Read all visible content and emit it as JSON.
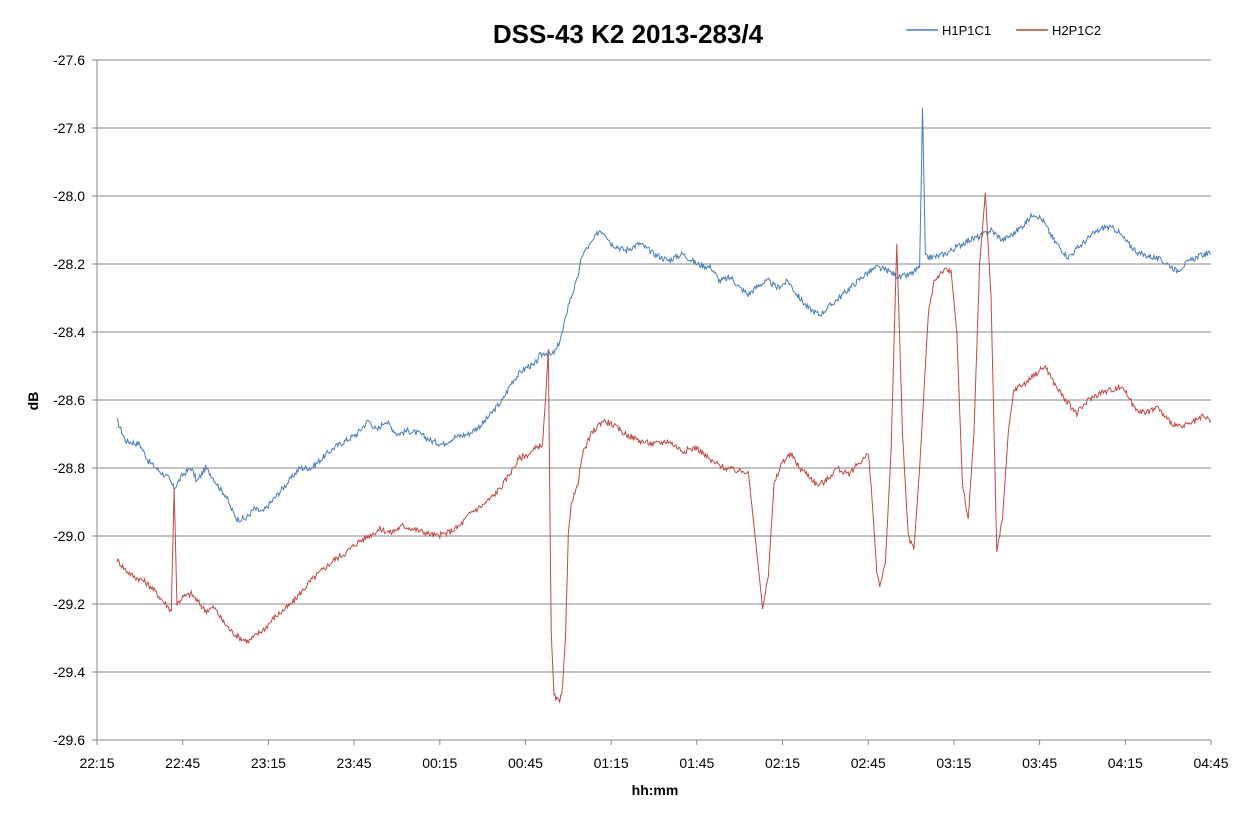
{
  "chart_data": {
    "type": "line",
    "title": "DSS-43 K2 2013-283/4",
    "xlabel": "hh:mm",
    "ylabel": "dB",
    "ylim": [
      -29.6,
      -27.6
    ],
    "y_ticks": [
      "-27.6",
      "-27.8",
      "-28.0",
      "-28.2",
      "-28.4",
      "-28.6",
      "-28.8",
      "-29.0",
      "-29.2",
      "-29.4",
      "-29.6"
    ],
    "x_ticks": [
      "22:15",
      "22:45",
      "23:15",
      "23:45",
      "00:15",
      "00:45",
      "01:15",
      "01:45",
      "02:15",
      "02:45",
      "03:15",
      "03:45",
      "04:15",
      "04:45"
    ],
    "grid": "horizontal",
    "legend_position": "top-right",
    "series": [
      {
        "name": "H1P1C1",
        "color": "#4a7ebb",
        "points": [
          [
            "22:22",
            -28.66
          ],
          [
            "22:25",
            -28.72
          ],
          [
            "22:30",
            -28.73
          ],
          [
            "22:33",
            -28.78
          ],
          [
            "22:37",
            -28.81
          ],
          [
            "22:40",
            -28.83
          ],
          [
            "22:42",
            -28.86
          ],
          [
            "22:45",
            -28.82
          ],
          [
            "22:48",
            -28.8
          ],
          [
            "22:50",
            -28.84
          ],
          [
            "22:53",
            -28.8
          ],
          [
            "22:55",
            -28.82
          ],
          [
            "22:58",
            -28.86
          ],
          [
            "23:00",
            -28.88
          ],
          [
            "23:02",
            -28.92
          ],
          [
            "23:04",
            -28.95
          ],
          [
            "23:07",
            -28.95
          ],
          [
            "23:10",
            -28.92
          ],
          [
            "23:13",
            -28.93
          ],
          [
            "23:16",
            -28.9
          ],
          [
            "23:19",
            -28.87
          ],
          [
            "23:22",
            -28.84
          ],
          [
            "23:26",
            -28.8
          ],
          [
            "23:30",
            -28.8
          ],
          [
            "23:34",
            -28.77
          ],
          [
            "23:38",
            -28.74
          ],
          [
            "23:42",
            -28.72
          ],
          [
            "23:46",
            -28.7
          ],
          [
            "23:50",
            -28.66
          ],
          [
            "23:53",
            -28.69
          ],
          [
            "23:56",
            -28.66
          ],
          [
            "00:00",
            -28.7
          ],
          [
            "00:04",
            -28.69
          ],
          [
            "00:08",
            -28.7
          ],
          [
            "00:12",
            -28.72
          ],
          [
            "00:16",
            -28.73
          ],
          [
            "00:20",
            -28.71
          ],
          [
            "00:25",
            -28.7
          ],
          [
            "00:30",
            -28.67
          ],
          [
            "00:34",
            -28.63
          ],
          [
            "00:37",
            -28.6
          ],
          [
            "00:40",
            -28.55
          ],
          [
            "00:43",
            -28.52
          ],
          [
            "00:46",
            -28.5
          ],
          [
            "00:48",
            -28.5
          ],
          [
            "00:50",
            -28.47
          ],
          [
            "00:52",
            -28.46
          ],
          [
            "00:54",
            -28.47
          ],
          [
            "00:56",
            -28.45
          ],
          [
            "00:58",
            -28.4
          ],
          [
            "01:00",
            -28.32
          ],
          [
            "01:03",
            -28.25
          ],
          [
            "01:05",
            -28.17
          ],
          [
            "01:08",
            -28.14
          ],
          [
            "01:11",
            -28.1
          ],
          [
            "01:13",
            -28.11
          ],
          [
            "01:15",
            -28.14
          ],
          [
            "01:20",
            -28.16
          ],
          [
            "01:25",
            -28.14
          ],
          [
            "01:30",
            -28.17
          ],
          [
            "01:35",
            -28.19
          ],
          [
            "01:40",
            -28.17
          ],
          [
            "01:45",
            -28.2
          ],
          [
            "01:50",
            -28.21
          ],
          [
            "01:53",
            -28.25
          ],
          [
            "01:57",
            -28.24
          ],
          [
            "02:00",
            -28.27
          ],
          [
            "02:03",
            -28.29
          ],
          [
            "02:07",
            -28.26
          ],
          [
            "02:10",
            -28.25
          ],
          [
            "02:13",
            -28.27
          ],
          [
            "02:17",
            -28.25
          ],
          [
            "02:20",
            -28.29
          ],
          [
            "02:24",
            -28.33
          ],
          [
            "02:28",
            -28.35
          ],
          [
            "02:32",
            -28.32
          ],
          [
            "02:36",
            -28.29
          ],
          [
            "02:40",
            -28.26
          ],
          [
            "02:44",
            -28.23
          ],
          [
            "02:48",
            -28.21
          ],
          [
            "02:52",
            -28.22
          ],
          [
            "02:56",
            -28.24
          ],
          [
            "03:00",
            -28.23
          ],
          [
            "03:03",
            -28.21
          ],
          [
            "03:04",
            -27.74
          ],
          [
            "03:05",
            -28.18
          ],
          [
            "03:08",
            -28.18
          ],
          [
            "03:12",
            -28.17
          ],
          [
            "03:16",
            -28.15
          ],
          [
            "03:20",
            -28.13
          ],
          [
            "03:24",
            -28.12
          ],
          [
            "03:28",
            -28.1
          ],
          [
            "03:32",
            -28.13
          ],
          [
            "03:36",
            -28.11
          ],
          [
            "03:40",
            -28.08
          ],
          [
            "03:43",
            -28.05
          ],
          [
            "03:46",
            -28.07
          ],
          [
            "03:50",
            -28.13
          ],
          [
            "03:55",
            -28.18
          ],
          [
            "04:00",
            -28.14
          ],
          [
            "04:04",
            -28.11
          ],
          [
            "04:08",
            -28.09
          ],
          [
            "04:12",
            -28.1
          ],
          [
            "04:16",
            -28.14
          ],
          [
            "04:20",
            -28.17
          ],
          [
            "04:25",
            -28.18
          ],
          [
            "04:30",
            -28.2
          ],
          [
            "04:33",
            -28.22
          ],
          [
            "04:36",
            -28.2
          ],
          [
            "04:40",
            -28.18
          ],
          [
            "04:43",
            -28.17
          ],
          [
            "04:45",
            -28.17
          ]
        ]
      },
      {
        "name": "H2P1C2",
        "color": "#be4b48",
        "points": [
          [
            "22:22",
            -29.07
          ],
          [
            "22:25",
            -29.1
          ],
          [
            "22:28",
            -29.12
          ],
          [
            "22:31",
            -29.13
          ],
          [
            "22:34",
            -29.15
          ],
          [
            "22:37",
            -29.18
          ],
          [
            "22:40",
            -29.21
          ],
          [
            "22:41",
            -29.22
          ],
          [
            "22:42",
            -28.86
          ],
          [
            "22:43",
            -29.2
          ],
          [
            "22:45",
            -29.18
          ],
          [
            "22:48",
            -29.17
          ],
          [
            "22:50",
            -29.19
          ],
          [
            "22:53",
            -29.22
          ],
          [
            "22:56",
            -29.21
          ],
          [
            "22:59",
            -29.25
          ],
          [
            "23:02",
            -29.28
          ],
          [
            "23:05",
            -29.3
          ],
          [
            "23:08",
            -29.31
          ],
          [
            "23:11",
            -29.29
          ],
          [
            "23:14",
            -29.27
          ],
          [
            "23:17",
            -29.24
          ],
          [
            "23:20",
            -29.22
          ],
          [
            "23:23",
            -29.2
          ],
          [
            "23:26",
            -29.17
          ],
          [
            "23:30",
            -29.13
          ],
          [
            "23:34",
            -29.1
          ],
          [
            "23:38",
            -29.07
          ],
          [
            "23:42",
            -29.05
          ],
          [
            "23:46",
            -29.02
          ],
          [
            "23:50",
            -29.0
          ],
          [
            "23:54",
            -28.98
          ],
          [
            "23:58",
            -28.99
          ],
          [
            "00:02",
            -28.97
          ],
          [
            "00:06",
            -28.98
          ],
          [
            "00:10",
            -28.99
          ],
          [
            "00:14",
            -29.0
          ],
          [
            "00:18",
            -28.99
          ],
          [
            "00:22",
            -28.97
          ],
          [
            "00:26",
            -28.93
          ],
          [
            "00:30",
            -28.91
          ],
          [
            "00:34",
            -28.88
          ],
          [
            "00:37",
            -28.85
          ],
          [
            "00:40",
            -28.81
          ],
          [
            "00:43",
            -28.77
          ],
          [
            "00:46",
            -28.76
          ],
          [
            "00:49",
            -28.74
          ],
          [
            "00:51",
            -28.73
          ],
          [
            "00:52",
            -28.6
          ],
          [
            "00:53",
            -28.45
          ],
          [
            "00:54",
            -29.28
          ],
          [
            "00:55",
            -29.47
          ],
          [
            "00:57",
            -29.49
          ],
          [
            "00:58",
            -29.45
          ],
          [
            "00:59",
            -29.3
          ],
          [
            "01:00",
            -29.0
          ],
          [
            "01:01",
            -28.9
          ],
          [
            "01:03",
            -28.86
          ],
          [
            "01:05",
            -28.76
          ],
          [
            "01:08",
            -28.7
          ],
          [
            "01:12",
            -28.66
          ],
          [
            "01:15",
            -28.67
          ],
          [
            "01:20",
            -28.7
          ],
          [
            "01:25",
            -28.72
          ],
          [
            "01:30",
            -28.73
          ],
          [
            "01:35",
            -28.72
          ],
          [
            "01:40",
            -28.75
          ],
          [
            "01:45",
            -28.74
          ],
          [
            "01:50",
            -28.78
          ],
          [
            "01:55",
            -28.8
          ],
          [
            "02:00",
            -28.81
          ],
          [
            "02:03",
            -28.81
          ],
          [
            "02:06",
            -29.05
          ],
          [
            "02:08",
            -29.21
          ],
          [
            "02:10",
            -29.12
          ],
          [
            "02:12",
            -28.85
          ],
          [
            "02:15",
            -28.78
          ],
          [
            "02:18",
            -28.76
          ],
          [
            "02:21",
            -28.8
          ],
          [
            "02:24",
            -28.82
          ],
          [
            "02:27",
            -28.85
          ],
          [
            "02:30",
            -28.84
          ],
          [
            "02:34",
            -28.8
          ],
          [
            "02:38",
            -28.82
          ],
          [
            "02:41",
            -28.79
          ],
          [
            "02:45",
            -28.76
          ],
          [
            "02:46",
            -28.85
          ],
          [
            "02:48",
            -29.1
          ],
          [
            "02:49",
            -29.15
          ],
          [
            "02:51",
            -29.08
          ],
          [
            "02:53",
            -28.75
          ],
          [
            "02:55",
            -28.14
          ],
          [
            "02:57",
            -28.7
          ],
          [
            "02:59",
            -29.0
          ],
          [
            "03:01",
            -29.04
          ],
          [
            "03:03",
            -28.8
          ],
          [
            "03:06",
            -28.35
          ],
          [
            "03:08",
            -28.25
          ],
          [
            "03:11",
            -28.22
          ],
          [
            "03:14",
            -28.22
          ],
          [
            "03:16",
            -28.4
          ],
          [
            "03:18",
            -28.85
          ],
          [
            "03:20",
            -28.95
          ],
          [
            "03:22",
            -28.7
          ],
          [
            "03:24",
            -28.2
          ],
          [
            "03:26",
            -27.99
          ],
          [
            "03:28",
            -28.3
          ],
          [
            "03:30",
            -29.05
          ],
          [
            "03:32",
            -28.95
          ],
          [
            "03:34",
            -28.7
          ],
          [
            "03:36",
            -28.57
          ],
          [
            "03:40",
            -28.55
          ],
          [
            "03:44",
            -28.52
          ],
          [
            "03:47",
            -28.5
          ],
          [
            "03:50",
            -28.55
          ],
          [
            "03:54",
            -28.6
          ],
          [
            "03:58",
            -28.64
          ],
          [
            "04:02",
            -28.6
          ],
          [
            "04:06",
            -28.58
          ],
          [
            "04:10",
            -28.57
          ],
          [
            "04:14",
            -28.56
          ],
          [
            "04:18",
            -28.62
          ],
          [
            "04:22",
            -28.64
          ],
          [
            "04:26",
            -28.62
          ],
          [
            "04:30",
            -28.66
          ],
          [
            "04:34",
            -28.68
          ],
          [
            "04:38",
            -28.67
          ],
          [
            "04:42",
            -28.65
          ],
          [
            "04:45",
            -28.66
          ]
        ]
      }
    ]
  }
}
